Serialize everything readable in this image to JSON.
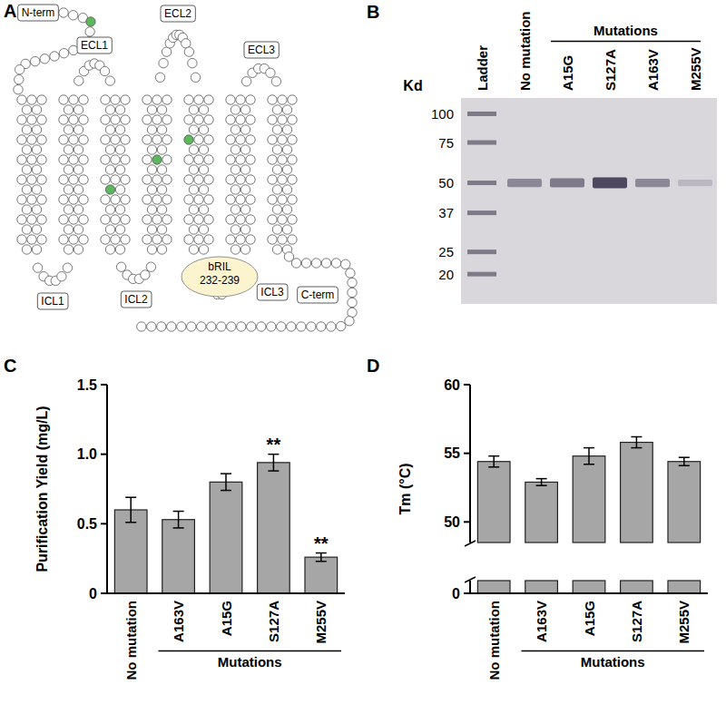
{
  "snake_plot": {
    "panel_label": "A",
    "labels": [
      "N-term",
      "ECL1",
      "ECL2",
      "ECL3",
      "ICL1",
      "ICL2",
      "ICL3",
      "C-term"
    ],
    "fusion": "bRIL 232-239"
  },
  "gel": {
    "panel_label": "B",
    "axis_title": "Kd",
    "markers": [
      100,
      75,
      50,
      37,
      25,
      20
    ],
    "lanes": [
      "Ladder",
      "No mutation",
      "A15G",
      "S127A",
      "A163V",
      "M255V"
    ],
    "group_label": "Mutations",
    "band_kd": 50,
    "band_intensity": [
      0.55,
      0.65,
      1.0,
      0.55,
      0.22
    ]
  },
  "chart_data": [
    {
      "type": "bar",
      "panel_label": "C",
      "y_label": "Purification Yield (mg/L)",
      "categories": [
        "No mutation",
        "A163V",
        "A15G",
        "S127A",
        "M255V"
      ],
      "values": [
        0.6,
        0.53,
        0.8,
        0.94,
        0.26
      ],
      "errors": [
        0.09,
        0.06,
        0.06,
        0.06,
        0.03
      ],
      "color": "#a6a6a6",
      "ylim": [
        0,
        1.5
      ],
      "yticks": [
        0,
        0.5,
        {
          "value": 1,
          "label": "1.0"
        },
        1.5
      ],
      "annotations": [
        null,
        null,
        null,
        "**",
        "**"
      ],
      "group_label": "Mutations"
    },
    {
      "type": "bar",
      "panel_label": "D",
      "y_label": "Tm (°C)",
      "categories": [
        "No mutation",
        "A163V",
        "A15G",
        "S127A",
        "M255V"
      ],
      "values": [
        54.4,
        52.9,
        54.8,
        55.8,
        54.4
      ],
      "errors": [
        0.4,
        0.25,
        0.6,
        0.4,
        0.3
      ],
      "color": "#a6a6a6",
      "ylim": [
        0,
        60
      ],
      "yticks": [
        0,
        50,
        55,
        60
      ],
      "axis_break": [
        1,
        48.5
      ],
      "group_label": "Mutations"
    }
  ]
}
